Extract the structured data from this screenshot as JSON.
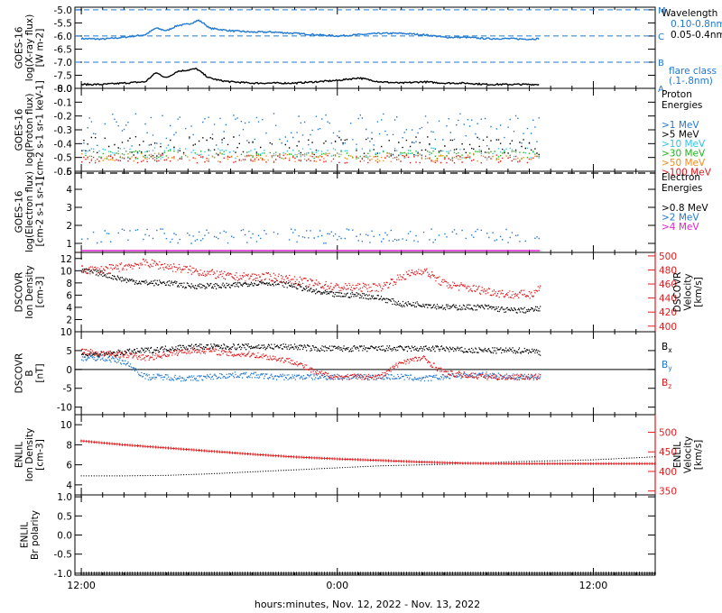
{
  "figure": {
    "xlabel": "hours:minutes, Nov. 12, 2022 - Nov. 13, 2022",
    "xtick_labels": [
      "12:00",
      "0:00",
      "12:00"
    ],
    "xtick_hours": [
      12,
      24,
      36
    ],
    "x_range_hours": [
      11.7,
      38.9
    ],
    "colors": {
      "black": "#000000",
      "blue": "#1f78d1",
      "cyan": "#2ec4e8",
      "green": "#1fb31f",
      "orange": "#f08c1e",
      "red": "#e41a1c",
      "magenta": "#e020d0"
    }
  },
  "chart_data": [
    {
      "type": "line",
      "title": "GOES-16 X-ray flux",
      "ylabel": [
        "GOES-16",
        "log(X-ray flux)",
        "[W m-2]"
      ],
      "ylim": [
        -8.0,
        -4.9
      ],
      "yticks": [
        -8.0,
        -7.5,
        -7.0,
        -6.5,
        -6.0,
        -5.5,
        -5.0
      ],
      "ytick_labels": [
        "-8.0",
        "-7.5",
        "-7.0",
        "-6.5",
        "-6.0",
        "-5.5",
        "-5.0"
      ],
      "flare_levels": [
        {
          "label": "A",
          "value": -8.0
        },
        {
          "label": "B",
          "value": -7.0
        },
        {
          "label": "C",
          "value": -6.0
        },
        {
          "label": "M",
          "value": -5.0
        }
      ],
      "legend": {
        "header": "Wavelength",
        "footer": [
          "flare class",
          "(.1-.8nm)"
        ]
      },
      "series": [
        {
          "name": "0.10-0.8nm",
          "color": "#1f78d1",
          "x": [
            12.0,
            13.0,
            14.0,
            15.0,
            15.5,
            16.0,
            16.5,
            17.0,
            17.5,
            17.8,
            18.0,
            18.5,
            19.0,
            20.0,
            21.0,
            22.0,
            23.0,
            24.0,
            25.0,
            26.0,
            27.0,
            28.0,
            28.6,
            29.0,
            30.0,
            31.0,
            32.0,
            33.0,
            33.5
          ],
          "y": [
            -6.1,
            -6.12,
            -6.05,
            -5.95,
            -5.7,
            -5.8,
            -5.6,
            -5.55,
            -5.4,
            -5.55,
            -5.7,
            -5.75,
            -5.8,
            -5.85,
            -5.85,
            -5.9,
            -5.95,
            -6.0,
            -5.95,
            -5.9,
            -5.9,
            -5.95,
            -6.0,
            -6.05,
            -6.05,
            -6.1,
            -6.1,
            -6.12,
            -6.1
          ]
        },
        {
          "name": "0.05-0.4nm",
          "color": "#000000",
          "x": [
            12.0,
            13.0,
            14.0,
            15.0,
            15.5,
            16.0,
            16.5,
            17.0,
            17.4,
            17.8,
            18.0,
            18.5,
            19.0,
            20.0,
            21.0,
            22.0,
            23.0,
            24.0,
            25.0,
            26.0,
            27.0,
            28.0,
            29.0,
            30.0,
            31.0,
            32.0,
            33.0,
            33.5
          ],
          "y": [
            -7.85,
            -7.85,
            -7.8,
            -7.75,
            -7.4,
            -7.6,
            -7.35,
            -7.3,
            -7.25,
            -7.5,
            -7.6,
            -7.7,
            -7.75,
            -7.8,
            -7.8,
            -7.8,
            -7.75,
            -7.7,
            -7.6,
            -7.75,
            -7.8,
            -7.75,
            -7.8,
            -7.8,
            -7.85,
            -7.85,
            -7.85,
            -7.85
          ]
        }
      ]
    },
    {
      "type": "scatter",
      "title": "GOES-16 Proton flux",
      "ylabel": [
        "GOES-16",
        "log(Proton flux)",
        "[cm-2 s-1 sr-1 keV-1]"
      ],
      "ylim": [
        -0.6,
        0.0
      ],
      "yticks": [
        -0.6,
        -0.5,
        -0.4,
        -0.3,
        -0.2,
        -0.1,
        0.0
      ],
      "ytick_labels": [
        "-0.6",
        "-0.5",
        "-0.4",
        "-0.3",
        "-0.2",
        "-0.1",
        "0.0"
      ],
      "legend": {
        "header": [
          "Proton",
          "Energies"
        ]
      },
      "x_range": [
        12.0,
        33.5
      ],
      "series": [
        {
          "name": ">1 MeV",
          "color": "#1f78d1",
          "level": -0.3,
          "spread": 0.12
        },
        {
          "name": ">5 MeV",
          "color": "#000000",
          "level": -0.42,
          "spread": 0.07
        },
        {
          "name": ">10 MeV",
          "color": "#2ec4e8",
          "level": -0.47,
          "spread": 0.04
        },
        {
          "name": ">30 MeV",
          "color": "#1fb31f",
          "level": -0.48,
          "spread": 0.03
        },
        {
          "name": ">50 MeV",
          "color": "#f08c1e",
          "level": -0.5,
          "spread": 0.03
        },
        {
          "name": ">100 MeV",
          "color": "#e41a1c",
          "level": -0.51,
          "spread": 0.03
        }
      ]
    },
    {
      "type": "scatter",
      "title": "GOES-16 Electron flux",
      "ylabel": [
        "GOES-16",
        "log(Electron flux)",
        "[cm-2 s-1 sr-1]"
      ],
      "ylim": [
        0.5,
        5.0
      ],
      "yticks": [
        1,
        2,
        3,
        4,
        5
      ],
      "ytick_labels": [
        "1",
        "2",
        "3",
        "4",
        "5"
      ],
      "legend": {
        "header": [
          "Electron",
          "Energies"
        ]
      },
      "x_range": [
        12.0,
        33.5
      ],
      "series": [
        {
          "name": ">0.8 MeV",
          "color": "#000000",
          "level": 4.9,
          "spread": 0.0,
          "style": "dash"
        },
        {
          "name": ">2 MeV",
          "color": "#1f78d1",
          "level": 1.4,
          "spread": 0.4
        },
        {
          "name": ">4 MeV",
          "color": "#e020d0",
          "level": 0.6,
          "spread": 0.0
        }
      ]
    },
    {
      "type": "scatter",
      "title": "DSCOVR plasma",
      "ylabel": [
        "DSCOVR",
        "Ion Density",
        "[cm-3]"
      ],
      "ylim": [
        0,
        13
      ],
      "yticks": [
        2,
        4,
        6,
        8,
        10,
        12
      ],
      "ytick_labels": [
        "2",
        "4",
        "6",
        "8",
        "10",
        "12"
      ],
      "y2label": [
        "DSCOVR",
        "Velocity",
        "[km/s]"
      ],
      "y2lim": [
        392,
        505
      ],
      "y2ticks": [
        400,
        420,
        440,
        460,
        480,
        500
      ],
      "y2tick_labels": [
        "400",
        "420",
        "440",
        "460",
        "480",
        "500"
      ],
      "series": [
        {
          "name": "Ion Density",
          "color": "#000000",
          "axis": "left",
          "x": [
            12.0,
            13.0,
            14.0,
            15.0,
            16.0,
            17.0,
            18.0,
            19.0,
            20.0,
            21.0,
            22.0,
            23.0,
            24.0,
            25.0,
            26.0,
            27.0,
            28.0,
            29.0,
            30.0,
            31.0,
            32.0,
            33.0,
            33.5
          ],
          "y": [
            10.0,
            9.5,
            8.5,
            8.0,
            8.0,
            7.5,
            7.5,
            7.5,
            8.0,
            8.0,
            7.5,
            6.5,
            6.0,
            6.0,
            5.5,
            4.5,
            4.5,
            4.0,
            4.0,
            4.0,
            3.5,
            3.5,
            3.8
          ]
        },
        {
          "name": "Velocity",
          "color": "#e41a1c",
          "axis": "right",
          "x": [
            12.0,
            13.0,
            14.0,
            15.0,
            16.0,
            17.0,
            18.0,
            19.0,
            20.0,
            21.0,
            22.0,
            23.0,
            24.0,
            25.0,
            26.0,
            27.0,
            28.0,
            29.0,
            30.0,
            31.0,
            32.0,
            33.0,
            33.5
          ],
          "y": [
            480,
            480,
            485,
            490,
            485,
            480,
            475,
            470,
            470,
            470,
            465,
            460,
            455,
            455,
            455,
            470,
            480,
            460,
            455,
            450,
            445,
            445,
            455
          ]
        }
      ]
    },
    {
      "type": "scatter",
      "title": "DSCOVR magnetic field",
      "ylabel": [
        "DSCOVR",
        "B",
        "[nT]"
      ],
      "ylim": [
        -12,
        10
      ],
      "yticks": [
        -10,
        -5,
        0,
        5,
        10
      ],
      "ytick_labels": [
        "-10",
        "-5",
        "0",
        "5",
        "10"
      ],
      "zero_line": true,
      "series": [
        {
          "name": "Bx",
          "label_main": "B",
          "label_sub": "x",
          "color": "#000000",
          "x": [
            12.0,
            13.0,
            14.0,
            15.0,
            16.0,
            17.0,
            18.0,
            19.0,
            20.0,
            21.0,
            22.0,
            23.0,
            24.0,
            25.0,
            26.0,
            27.0,
            28.0,
            29.0,
            30.0,
            31.0,
            32.0,
            33.0,
            33.5
          ],
          "y": [
            4.0,
            4.0,
            4.5,
            5.0,
            5.5,
            6.0,
            6.0,
            6.0,
            6.0,
            6.0,
            6.0,
            5.5,
            5.5,
            5.5,
            5.5,
            5.5,
            5.5,
            5.5,
            5.0,
            5.0,
            5.0,
            5.0,
            4.5
          ]
        },
        {
          "name": "By",
          "label_main": "B",
          "label_sub": "y",
          "color": "#1f78d1",
          "x": [
            12.0,
            13.0,
            14.0,
            15.0,
            16.0,
            17.0,
            18.0,
            19.0,
            20.0,
            21.0,
            22.0,
            23.0,
            24.0,
            25.0,
            26.0,
            27.0,
            28.0,
            29.0,
            30.0,
            31.0,
            32.0,
            33.0,
            33.5
          ],
          "y": [
            3.0,
            3.0,
            2.0,
            -2.0,
            -2.0,
            -2.5,
            -2.0,
            -1.5,
            -1.5,
            -2.0,
            -2.0,
            -2.0,
            -2.0,
            -2.0,
            -2.0,
            -2.0,
            -2.5,
            -2.0,
            -1.5,
            -1.5,
            -2.0,
            -2.0,
            -2.0
          ]
        },
        {
          "name": "Bz",
          "label_main": "B",
          "label_sub": "z",
          "color": "#e41a1c",
          "x": [
            12.0,
            13.0,
            14.0,
            15.0,
            16.0,
            17.0,
            18.0,
            19.0,
            20.0,
            21.0,
            22.0,
            23.0,
            24.0,
            25.0,
            26.0,
            27.0,
            28.0,
            29.0,
            30.0,
            31.0,
            32.0,
            33.0,
            33.5
          ],
          "y": [
            5.0,
            4.0,
            4.0,
            3.0,
            4.0,
            5.0,
            5.0,
            4.0,
            4.0,
            3.0,
            2.0,
            -1.0,
            -2.0,
            -2.0,
            -2.0,
            2.0,
            3.0,
            -1.0,
            -1.5,
            -2.0,
            -2.0,
            -2.0,
            -2.0
          ]
        }
      ]
    },
    {
      "type": "line",
      "title": "ENLIL model",
      "ylabel": [
        "ENLIL",
        "Ion Density",
        "[cm-3]"
      ],
      "ylim": [
        3,
        11
      ],
      "yticks": [
        4,
        6,
        8,
        10
      ],
      "ytick_labels": [
        "4",
        "6",
        "8",
        "10"
      ],
      "y2label": [
        "ENLIL",
        "Velocity",
        "[km/s]"
      ],
      "y2lim": [
        340,
        545
      ],
      "y2ticks": [
        350,
        400,
        450,
        500
      ],
      "y2tick_labels": [
        "350",
        "400",
        "450",
        "500"
      ],
      "series": [
        {
          "name": "Ion Density",
          "color": "#000000",
          "axis": "left",
          "style": "dotted",
          "x": [
            12.0,
            14.0,
            16.0,
            18.0,
            20.0,
            22.0,
            24.0,
            26.0,
            28.0,
            30.0,
            32.0,
            34.0,
            36.0,
            38.9
          ],
          "y": [
            4.9,
            4.9,
            4.95,
            5.1,
            5.3,
            5.5,
            5.7,
            5.9,
            6.0,
            6.1,
            6.3,
            6.4,
            6.5,
            6.8
          ]
        },
        {
          "name": "Velocity",
          "color": "#e41a1c",
          "axis": "right",
          "style": "cross",
          "x": [
            12.0,
            14.0,
            16.0,
            18.0,
            20.0,
            22.0,
            24.0,
            26.0,
            28.0,
            30.0,
            32.0,
            34.0,
            36.0,
            38.9
          ],
          "y": [
            478,
            468,
            460,
            452,
            444,
            437,
            432,
            428,
            424,
            421,
            420,
            420,
            420,
            420
          ]
        }
      ]
    },
    {
      "type": "line",
      "title": "ENLIL polarity",
      "ylabel": [
        "ENLIL",
        "Br polarity"
      ],
      "ylim": [
        -1.05,
        1.05
      ],
      "yticks": [
        -1.0,
        -0.5,
        0.0,
        0.5,
        1.0
      ],
      "ytick_labels": [
        "-1.0",
        "-0.5",
        "0.0",
        "0.5",
        "1.0"
      ],
      "series": [
        {
          "name": "Br polarity",
          "color": "#000000",
          "style": "cross",
          "x": [
            12.0,
            38.9
          ],
          "y": [
            -1.0,
            -1.0
          ]
        }
      ]
    }
  ]
}
